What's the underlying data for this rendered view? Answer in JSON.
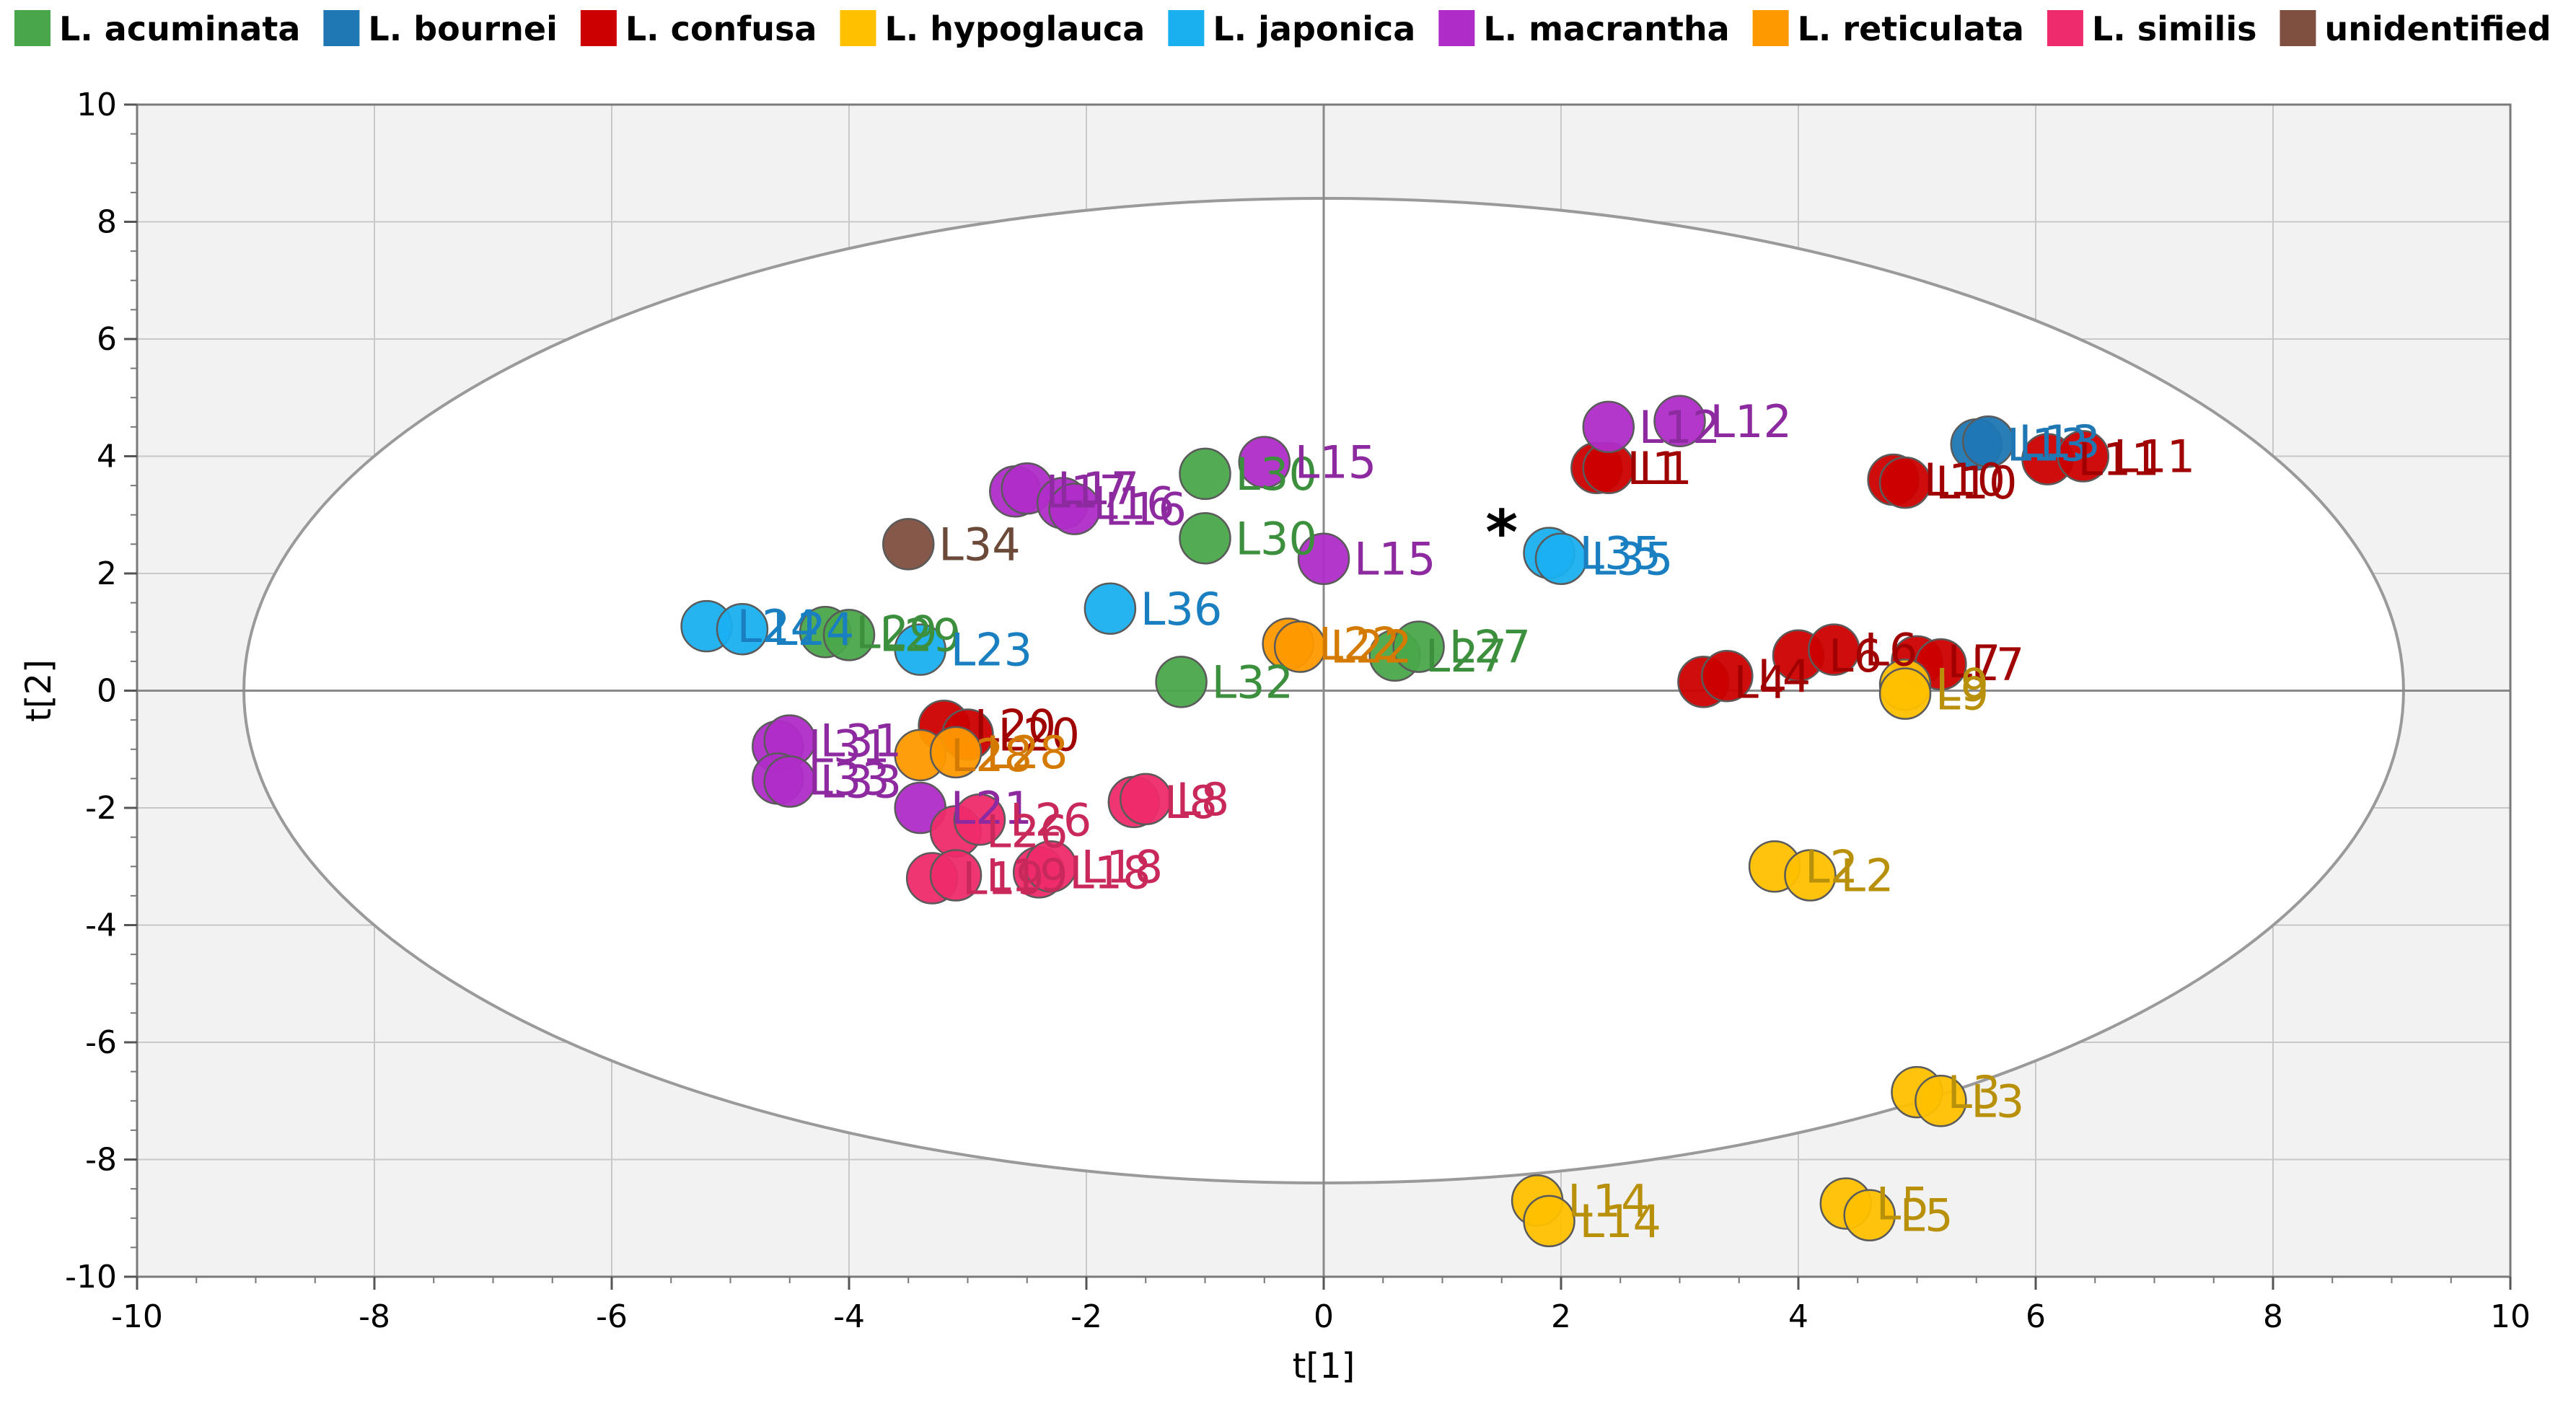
{
  "chart_data": {
    "type": "scatter",
    "title": "",
    "xlabel": "t[1]",
    "ylabel": "t[2]",
    "xlim": [
      -10,
      10
    ],
    "ylim": [
      -10,
      10
    ],
    "xticks": [
      -10,
      -8,
      -6,
      -4,
      -2,
      0,
      2,
      4,
      6,
      8,
      10
    ],
    "yticks": [
      -10,
      -8,
      -6,
      -4,
      -2,
      0,
      2,
      4,
      6,
      8,
      10
    ],
    "grid": true,
    "legend_position": "top",
    "ellipse": {
      "rx": 9.1,
      "ry": 8.4,
      "cx": 0,
      "cy": 0
    },
    "marker_annotation": {
      "text": "*",
      "x": 1.5,
      "y": 2.7
    },
    "series": [
      {
        "name": "L. acuminata",
        "color": "#4aa64a",
        "label_color": "#3c8f3c",
        "points": [
          {
            "x": -4.2,
            "y": 1.0,
            "label": "L29"
          },
          {
            "x": -4.0,
            "y": 0.95,
            "label": "L29"
          },
          {
            "x": -1.0,
            "y": 3.7,
            "label": "L30"
          },
          {
            "x": -1.0,
            "y": 2.6,
            "label": "L30"
          },
          {
            "x": -1.2,
            "y": 0.15,
            "label": "L32"
          },
          {
            "x": 0.6,
            "y": 0.6,
            "label": "L27"
          },
          {
            "x": 0.8,
            "y": 0.75,
            "label": "L27"
          }
        ]
      },
      {
        "name": "L. bournei",
        "color": "#1f77b4",
        "label_color": "#1f77b4",
        "points": [
          {
            "x": 5.5,
            "y": 4.2,
            "label": "L13"
          },
          {
            "x": 5.6,
            "y": 4.25,
            "label": "L13"
          }
        ]
      },
      {
        "name": "L. confusa",
        "color": "#cc0000",
        "label_color": "#a00000",
        "points": [
          {
            "x": 2.3,
            "y": 3.8,
            "label": "L1"
          },
          {
            "x": 2.4,
            "y": 3.8,
            "label": "L1"
          },
          {
            "x": 4.8,
            "y": 3.6,
            "label": "L10"
          },
          {
            "x": 4.9,
            "y": 3.55,
            "label": "L10"
          },
          {
            "x": 6.1,
            "y": 3.95,
            "label": "L11"
          },
          {
            "x": 6.4,
            "y": 4.0,
            "label": "L11"
          },
          {
            "x": 3.2,
            "y": 0.15,
            "label": "L4"
          },
          {
            "x": 3.4,
            "y": 0.25,
            "label": "L4"
          },
          {
            "x": 4.0,
            "y": 0.6,
            "label": "L6"
          },
          {
            "x": 4.3,
            "y": 0.7,
            "label": "L6"
          },
          {
            "x": 5.0,
            "y": 0.5,
            "label": "L7"
          },
          {
            "x": 5.2,
            "y": 0.45,
            "label": "L7"
          },
          {
            "x": -3.2,
            "y": -0.6,
            "label": "L20"
          },
          {
            "x": -3.0,
            "y": -0.75,
            "label": "L20"
          }
        ]
      },
      {
        "name": "L. hypoglauca",
        "color": "#ffc000",
        "label_color": "#b8900a",
        "points": [
          {
            "x": 4.9,
            "y": 0.1,
            "label": "L9"
          },
          {
            "x": 4.9,
            "y": -0.05,
            "label": "L9"
          },
          {
            "x": 3.8,
            "y": -3.0,
            "label": "L2"
          },
          {
            "x": 4.1,
            "y": -3.15,
            "label": "L2"
          },
          {
            "x": 5.0,
            "y": -6.85,
            "label": "L3"
          },
          {
            "x": 5.2,
            "y": -7.0,
            "label": "L3"
          },
          {
            "x": 1.8,
            "y": -8.7,
            "label": "L14"
          },
          {
            "x": 1.9,
            "y": -9.05,
            "label": "L14"
          },
          {
            "x": 4.4,
            "y": -8.75,
            "label": "L5"
          },
          {
            "x": 4.6,
            "y": -8.95,
            "label": "L5"
          }
        ]
      },
      {
        "name": "L. japonica",
        "color": "#1ab0f0",
        "label_color": "#1a7fc0",
        "points": [
          {
            "x": -5.2,
            "y": 1.1,
            "label": "L24"
          },
          {
            "x": -4.9,
            "y": 1.05,
            "label": "L24"
          },
          {
            "x": -3.4,
            "y": 0.7,
            "label": "L23"
          },
          {
            "x": -1.8,
            "y": 1.4,
            "label": "L36"
          },
          {
            "x": 1.9,
            "y": 2.35,
            "label": "L35"
          },
          {
            "x": 2.0,
            "y": 2.25,
            "label": "L35"
          }
        ]
      },
      {
        "name": "L. macrantha",
        "color": "#b02cc8",
        "label_color": "#8e2aa0",
        "points": [
          {
            "x": 2.4,
            "y": 4.5,
            "label": "L12"
          },
          {
            "x": 3.0,
            "y": 4.6,
            "label": "L12"
          },
          {
            "x": -0.5,
            "y": 3.9,
            "label": "L15"
          },
          {
            "x": 0.0,
            "y": 2.25,
            "label": "L15"
          },
          {
            "x": -2.6,
            "y": 3.4,
            "label": "L17"
          },
          {
            "x": -2.5,
            "y": 3.45,
            "label": "L17"
          },
          {
            "x": -2.2,
            "y": 3.2,
            "label": "L16"
          },
          {
            "x": -2.1,
            "y": 3.1,
            "label": "L16"
          },
          {
            "x": -4.6,
            "y": -0.95,
            "label": "L31"
          },
          {
            "x": -4.5,
            "y": -0.85,
            "label": "L31"
          },
          {
            "x": -4.6,
            "y": -1.5,
            "label": "L33"
          },
          {
            "x": -4.5,
            "y": -1.55,
            "label": "L33"
          },
          {
            "x": -3.4,
            "y": -2.0,
            "label": "L21"
          }
        ]
      },
      {
        "name": "L. reticulata",
        "color": "#ff9900",
        "label_color": "#d47a00",
        "points": [
          {
            "x": -0.3,
            "y": 0.8,
            "label": "L22"
          },
          {
            "x": -0.2,
            "y": 0.75,
            "label": "L22"
          },
          {
            "x": -3.4,
            "y": -1.1,
            "label": "L28"
          },
          {
            "x": -3.1,
            "y": -1.05,
            "label": "L28"
          }
        ]
      },
      {
        "name": "L. similis",
        "color": "#ee2b6c",
        "label_color": "#c8285a",
        "points": [
          {
            "x": -1.6,
            "y": -1.9,
            "label": "L8"
          },
          {
            "x": -1.5,
            "y": -1.85,
            "label": "L8"
          },
          {
            "x": -3.1,
            "y": -2.4,
            "label": "L26"
          },
          {
            "x": -2.9,
            "y": -2.2,
            "label": "L26"
          },
          {
            "x": -3.3,
            "y": -3.2,
            "label": "L19"
          },
          {
            "x": -3.1,
            "y": -3.15,
            "label": "L19"
          },
          {
            "x": -2.4,
            "y": -3.1,
            "label": "L18"
          },
          {
            "x": -2.3,
            "y": -3.0,
            "label": "L18"
          }
        ]
      },
      {
        "name": "unidentified",
        "color": "#7f4f3f",
        "label_color": "#6b4a3a",
        "points": [
          {
            "x": -3.5,
            "y": 2.5,
            "label": "L34"
          }
        ]
      }
    ]
  }
}
